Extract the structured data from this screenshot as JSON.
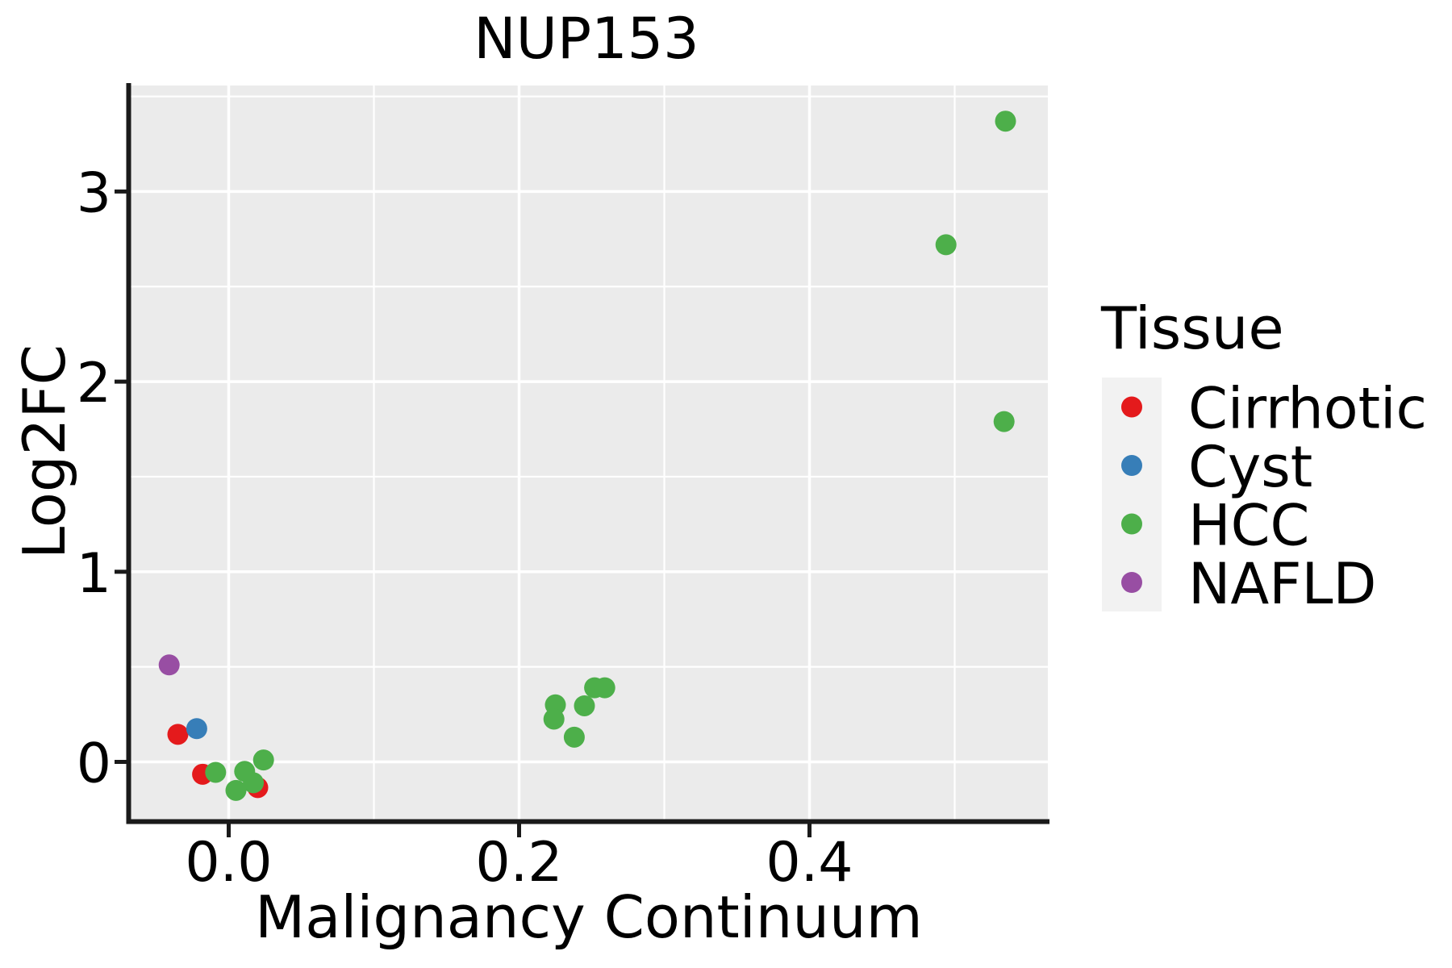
{
  "chart_data": {
    "type": "scatter",
    "title": "NUP153",
    "xlabel": "Malignancy Continuum",
    "ylabel": "Log2FC",
    "xlim": [
      -0.069,
      0.564
    ],
    "ylim": [
      -0.31,
      3.55
    ],
    "grid": true,
    "panel_color": "#EBEBEB",
    "gridline_color": "#FFFFFF",
    "axis_color": "#1a1a1a",
    "x_ticks": {
      "values": [
        0.0,
        0.2,
        0.4
      ],
      "labels": [
        "0.0",
        "0.2",
        "0.4"
      ]
    },
    "y_ticks": {
      "values": [
        0,
        1,
        2,
        3
      ],
      "labels": [
        "0",
        "1",
        "2",
        "3"
      ]
    },
    "legend": {
      "title": "Tissue",
      "position": "right",
      "key_fill": "#F2F2F2",
      "entries": [
        {
          "label": "Cirrhotic",
          "color": "#E41A1C"
        },
        {
          "label": "Cyst",
          "color": "#377EB8"
        },
        {
          "label": "HCC",
          "color": "#4DAF4A"
        },
        {
          "label": "NAFLD",
          "color": "#984EA3"
        }
      ]
    },
    "series": [
      {
        "name": "Cirrhotic",
        "color": "#E41A1C",
        "points": [
          [
            -0.035,
            0.145
          ],
          [
            -0.018,
            -0.065
          ],
          [
            0.02,
            -0.135
          ]
        ]
      },
      {
        "name": "Cyst",
        "color": "#377EB8",
        "points": [
          [
            -0.022,
            0.175
          ]
        ]
      },
      {
        "name": "HCC",
        "color": "#4DAF4A",
        "points": [
          [
            -0.009,
            -0.055
          ],
          [
            0.011,
            -0.05
          ],
          [
            0.017,
            -0.11
          ],
          [
            0.005,
            -0.15
          ],
          [
            0.024,
            0.01
          ],
          [
            0.225,
            0.3
          ],
          [
            0.224,
            0.225
          ],
          [
            0.238,
            0.13
          ],
          [
            0.245,
            0.295
          ],
          [
            0.252,
            0.39
          ],
          [
            0.259,
            0.39
          ],
          [
            0.494,
            2.72
          ],
          [
            0.534,
            1.79
          ],
          [
            0.535,
            3.37
          ]
        ]
      },
      {
        "name": "NAFLD",
        "color": "#984EA3",
        "points": [
          [
            -0.041,
            0.51
          ]
        ]
      }
    ]
  }
}
